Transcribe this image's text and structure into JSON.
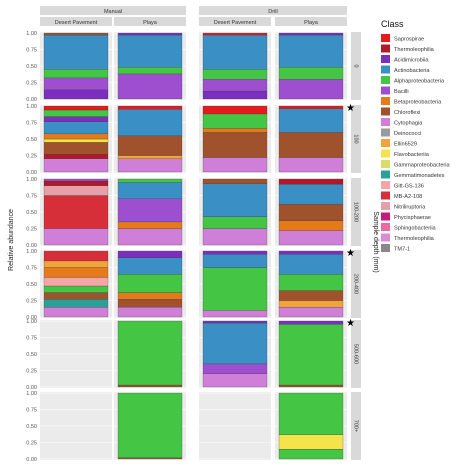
{
  "chart_data": {
    "type": "bar",
    "stacked": true,
    "facets": {
      "col_groups": [
        "Manual",
        "Drill"
      ],
      "col_sub": [
        "Desert Pavement",
        "Playa"
      ],
      "rows": [
        "0",
        "100",
        "100-200",
        "200-400",
        "500-600",
        "700+"
      ]
    },
    "ylabel": "Relative abundance",
    "row_axis_label": "Sample depth (mm)",
    "y_ticks": [
      "0.00",
      "0.25",
      "0.50",
      "0.75",
      "1.00"
    ],
    "ylim": [
      0,
      1
    ],
    "legend": {
      "title": "Class",
      "placement": "right",
      "entries": [
        {
          "name": "Saprospirae",
          "color": "#e41a1c"
        },
        {
          "name": "Thermoleophilia",
          "color": "#b2182b"
        },
        {
          "name": "Acidimicrobiia",
          "color": "#7b2fbe"
        },
        {
          "name": "Actinobacteria",
          "color": "#3a8fc5"
        },
        {
          "name": "Alphaproteobacteria",
          "color": "#44c544"
        },
        {
          "name": "Bacilli",
          "color": "#9e4fd0"
        },
        {
          "name": "Betaproteobacteria",
          "color": "#e47a1a"
        },
        {
          "name": "Chloroflexi",
          "color": "#a0522d"
        },
        {
          "name": "Cytophagia",
          "color": "#cf7fd8"
        },
        {
          "name": "Deinococci",
          "color": "#9a9a9a"
        },
        {
          "name": "Ellin6529",
          "color": "#f2a33a"
        },
        {
          "name": "Flavobacteriia",
          "color": "#f5e34a"
        },
        {
          "name": "Gammaproteobacteria",
          "color": "#dcdc6a"
        },
        {
          "name": "Gemmatimonadetes",
          "color": "#2aa198"
        },
        {
          "name": "Gitt-GS-136",
          "color": "#f4a6a6"
        },
        {
          "name": "MB-A2-108",
          "color": "#d62f3a"
        },
        {
          "name": "Nitriliruptoria",
          "color": "#e8a0a8"
        },
        {
          "name": "Phycisphaerae",
          "color": "#c51b7d"
        },
        {
          "name": "Sphingobacteriia",
          "color": "#ec6aa4"
        },
        {
          "name": "Thermoleophilia",
          "color": "#d98bd6"
        },
        {
          "name": "TM7-1",
          "color": "#888888"
        }
      ]
    },
    "starred_rows": [
      "100",
      "200-400",
      "500-600"
    ],
    "panels": [
      {
        "row": 0,
        "col": 0,
        "segments": [
          {
            "class": "Acidimicrobiia",
            "value": 0.14
          },
          {
            "class": "Bacilli",
            "value": 0.18
          },
          {
            "class": "Alphaproteobacteria",
            "value": 0.13
          },
          {
            "class": "Actinobacteria",
            "value": 0.52
          },
          {
            "class": "Chloroflexi",
            "value": 0.03
          }
        ]
      },
      {
        "row": 0,
        "col": 1,
        "segments": [
          {
            "class": "Bacilli",
            "value": 0.38
          },
          {
            "class": "Alphaproteobacteria",
            "value": 0.1
          },
          {
            "class": "Actinobacteria",
            "value": 0.49
          },
          {
            "class": "Acidimicrobiia",
            "value": 0.03
          }
        ]
      },
      {
        "row": 0,
        "col": 2,
        "segments": [
          {
            "class": "Acidimicrobiia",
            "value": 0.12
          },
          {
            "class": "Bacilli",
            "value": 0.18
          },
          {
            "class": "Alphaproteobacteria",
            "value": 0.15
          },
          {
            "class": "Actinobacteria",
            "value": 0.52
          },
          {
            "class": "Saprospirae",
            "value": 0.03
          }
        ]
      },
      {
        "row": 0,
        "col": 3,
        "segments": [
          {
            "class": "Bacilli",
            "value": 0.3
          },
          {
            "class": "Alphaproteobacteria",
            "value": 0.18
          },
          {
            "class": "Actinobacteria",
            "value": 0.49
          },
          {
            "class": "Acidimicrobiia",
            "value": 0.03
          }
        ]
      },
      {
        "row": 1,
        "col": 0,
        "segments": [
          {
            "class": "Cytophagia",
            "value": 0.2
          },
          {
            "class": "Thermoleophilia",
            "value": 0.07
          },
          {
            "class": "Chloroflexi",
            "value": 0.18
          },
          {
            "class": "Flavobacteriia",
            "value": 0.05
          },
          {
            "class": "Betaproteobacteria",
            "value": 0.08
          },
          {
            "class": "Actinobacteria",
            "value": 0.18
          },
          {
            "class": "Acidimicrobiia",
            "value": 0.08
          },
          {
            "class": "Alphaproteobacteria",
            "value": 0.1
          },
          {
            "class": "Saprospirae",
            "value": 0.06
          }
        ]
      },
      {
        "row": 1,
        "col": 1,
        "segments": [
          {
            "class": "Cytophagia",
            "value": 0.2
          },
          {
            "class": "Ellin6529",
            "value": 0.05
          },
          {
            "class": "Chloroflexi",
            "value": 0.3
          },
          {
            "class": "Actinobacteria",
            "value": 0.4
          },
          {
            "class": "Saprospirae",
            "value": 0.05
          }
        ]
      },
      {
        "row": 1,
        "col": 2,
        "segments": [
          {
            "class": "Cytophagia",
            "value": 0.22
          },
          {
            "class": "Chloroflexi",
            "value": 0.38
          },
          {
            "class": "Betaproteobacteria",
            "value": 0.06
          },
          {
            "class": "Alphaproteobacteria",
            "value": 0.22
          },
          {
            "class": "Saprospirae",
            "value": 0.12
          }
        ]
      },
      {
        "row": 1,
        "col": 3,
        "segments": [
          {
            "class": "Cytophagia",
            "value": 0.22
          },
          {
            "class": "Chloroflexi",
            "value": 0.38
          },
          {
            "class": "Actinobacteria",
            "value": 0.36
          },
          {
            "class": "Saprospirae",
            "value": 0.04
          }
        ]
      },
      {
        "row": 2,
        "col": 0,
        "segments": [
          {
            "class": "Cytophagia",
            "value": 0.25
          },
          {
            "class": "MB-A2-108",
            "value": 0.5
          },
          {
            "class": "Nitriliruptoria",
            "value": 0.15
          },
          {
            "class": "Thermoleophilia",
            "value": 0.07
          },
          {
            "class": "Bacilli",
            "value": 0.03
          }
        ]
      },
      {
        "row": 2,
        "col": 1,
        "segments": [
          {
            "class": "Cytophagia",
            "value": 0.25
          },
          {
            "class": "Betaproteobacteria",
            "value": 0.1
          },
          {
            "class": "Bacilli",
            "value": 0.35
          },
          {
            "class": "Actinobacteria",
            "value": 0.25
          },
          {
            "class": "Alphaproteobacteria",
            "value": 0.05
          }
        ]
      },
      {
        "row": 2,
        "col": 2,
        "segments": [
          {
            "class": "Cytophagia",
            "value": 0.25
          },
          {
            "class": "Alphaproteobacteria",
            "value": 0.18
          },
          {
            "class": "Actinobacteria",
            "value": 0.5
          },
          {
            "class": "Chloroflexi",
            "value": 0.07
          }
        ]
      },
      {
        "row": 2,
        "col": 3,
        "segments": [
          {
            "class": "Cytophagia",
            "value": 0.22
          },
          {
            "class": "Betaproteobacteria",
            "value": 0.15
          },
          {
            "class": "Chloroflexi",
            "value": 0.25
          },
          {
            "class": "Actinobacteria",
            "value": 0.3
          },
          {
            "class": "Thermoleophilia",
            "value": 0.08
          }
        ]
      },
      {
        "row": 3,
        "col": 0,
        "segments": [
          {
            "class": "Cytophagia",
            "value": 0.15
          },
          {
            "class": "Gemmatimonadetes",
            "value": 0.12
          },
          {
            "class": "Chloroflexi",
            "value": 0.1
          },
          {
            "class": "Alphaproteobacteria",
            "value": 0.1
          },
          {
            "class": "Gitt-GS-136",
            "value": 0.13
          },
          {
            "class": "Betaproteobacteria",
            "value": 0.15
          },
          {
            "class": "Ellin6529",
            "value": 0.1
          },
          {
            "class": "MB-A2-108",
            "value": 0.15
          }
        ]
      },
      {
        "row": 3,
        "col": 1,
        "segments": [
          {
            "class": "Cytophagia",
            "value": 0.15
          },
          {
            "class": "Chloroflexi",
            "value": 0.12
          },
          {
            "class": "Betaproteobacteria",
            "value": 0.1
          },
          {
            "class": "Alphaproteobacteria",
            "value": 0.28
          },
          {
            "class": "Actinobacteria",
            "value": 0.25
          },
          {
            "class": "Acidimicrobiia",
            "value": 0.1
          }
        ]
      },
      {
        "row": 3,
        "col": 2,
        "segments": [
          {
            "class": "Cytophagia",
            "value": 0.1
          },
          {
            "class": "Alphaproteobacteria",
            "value": 0.65
          },
          {
            "class": "Actinobacteria",
            "value": 0.2
          },
          {
            "class": "Acidimicrobiia",
            "value": 0.05
          }
        ]
      },
      {
        "row": 3,
        "col": 3,
        "segments": [
          {
            "class": "Cytophagia",
            "value": 0.15
          },
          {
            "class": "Ellin6529",
            "value": 0.1
          },
          {
            "class": "Chloroflexi",
            "value": 0.15
          },
          {
            "class": "Alphaproteobacteria",
            "value": 0.25
          },
          {
            "class": "Actinobacteria",
            "value": 0.3
          },
          {
            "class": "Acidimicrobiia",
            "value": 0.05
          }
        ]
      },
      {
        "row": 4,
        "col": 0,
        "segments": []
      },
      {
        "row": 4,
        "col": 1,
        "segments": [
          {
            "class": "Chloroflexi",
            "value": 0.03
          },
          {
            "class": "Alphaproteobacteria",
            "value": 0.97
          }
        ]
      },
      {
        "row": 4,
        "col": 2,
        "segments": [
          {
            "class": "Cytophagia",
            "value": 0.2
          },
          {
            "class": "Bacilli",
            "value": 0.15
          },
          {
            "class": "Actinobacteria",
            "value": 0.62
          },
          {
            "class": "Acidimicrobiia",
            "value": 0.03
          }
        ]
      },
      {
        "row": 4,
        "col": 3,
        "segments": [
          {
            "class": "Chloroflexi",
            "value": 0.03
          },
          {
            "class": "Alphaproteobacteria",
            "value": 0.92
          },
          {
            "class": "Acidimicrobiia",
            "value": 0.05
          }
        ]
      },
      {
        "row": 5,
        "col": 0,
        "segments": []
      },
      {
        "row": 5,
        "col": 1,
        "segments": [
          {
            "class": "Chloroflexi",
            "value": 0.02
          },
          {
            "class": "Alphaproteobacteria",
            "value": 0.98
          }
        ]
      },
      {
        "row": 5,
        "col": 2,
        "segments": []
      },
      {
        "row": 5,
        "col": 3,
        "segments": [
          {
            "class": "Alphaproteobacteria",
            "value": 0.15
          },
          {
            "class": "Flavobacteriia",
            "value": 0.22
          },
          {
            "class": "Alphaproteobacteria",
            "value": 0.63
          }
        ]
      }
    ]
  }
}
